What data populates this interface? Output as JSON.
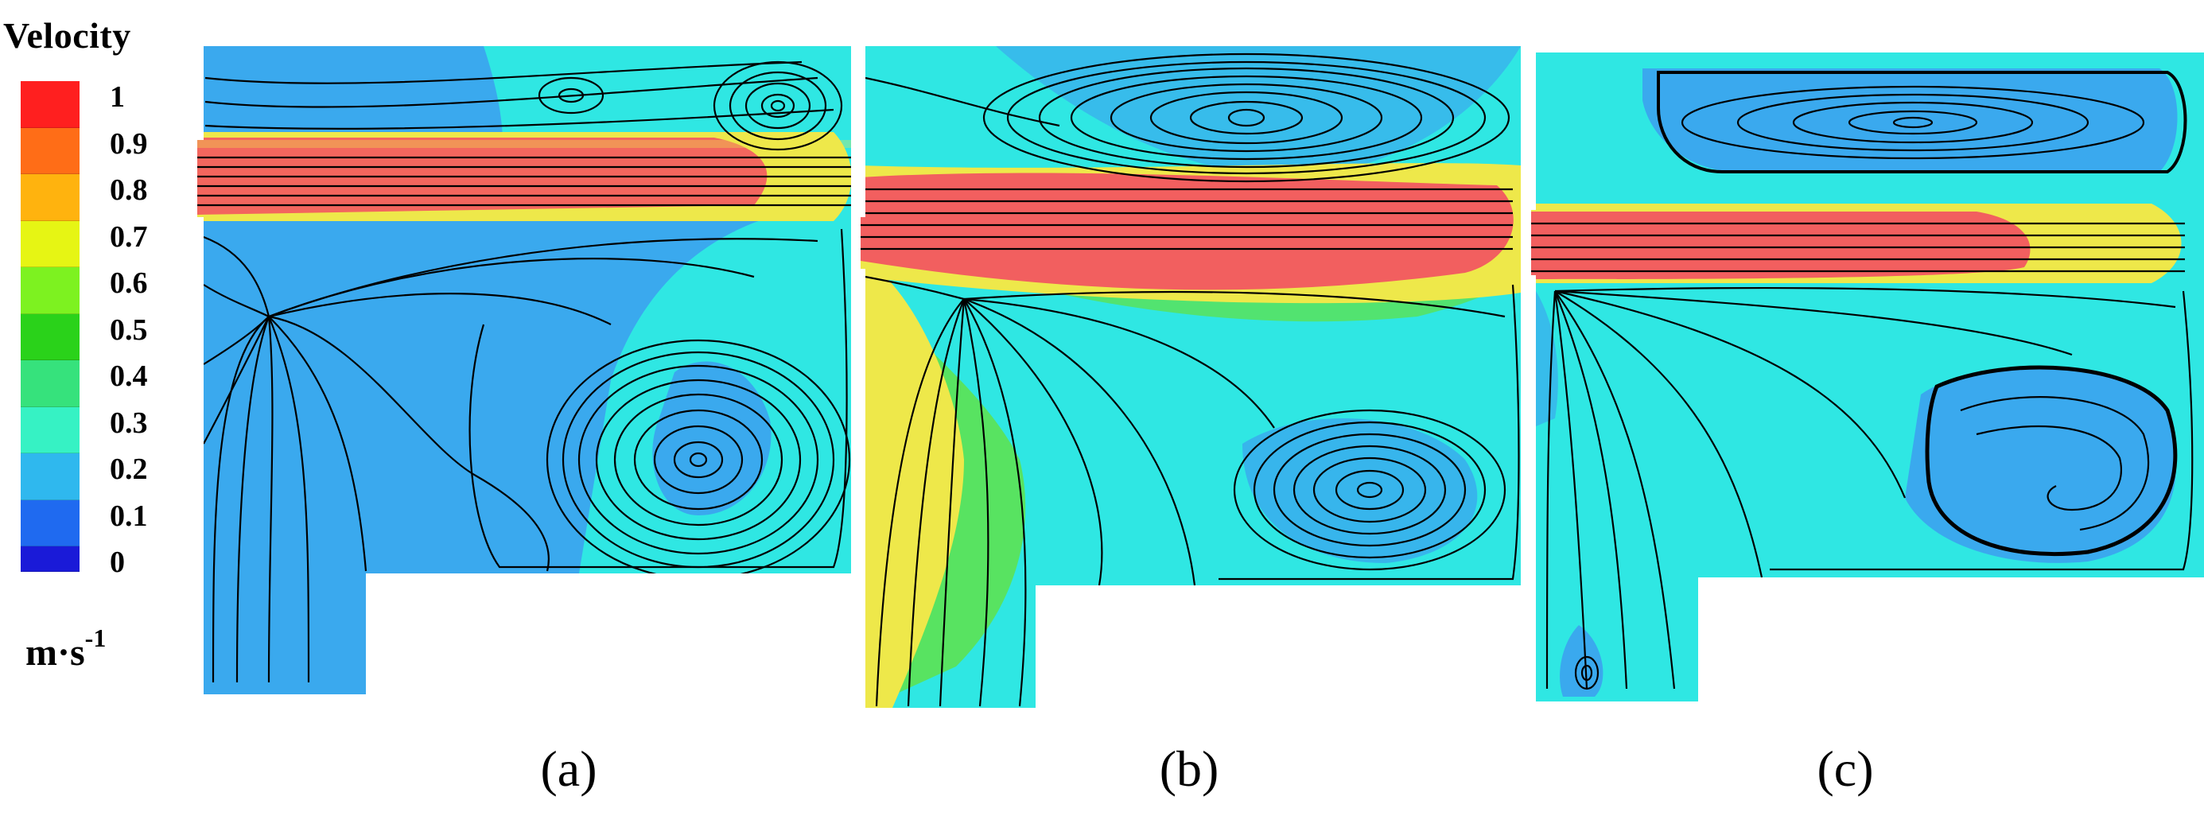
{
  "legend": {
    "title": "Velocity",
    "unit_base": "m·s",
    "unit_exp": "-1",
    "ticks": [
      "1",
      "0.9",
      "0.8",
      "0.7",
      "0.6",
      "0.5",
      "0.4",
      "0.3",
      "0.2",
      "0.1",
      "0"
    ],
    "colors": [
      "#ff1f1f",
      "#ff6d17",
      "#ffb30e",
      "#e6f514",
      "#7df220",
      "#2ad21a",
      "#36e27c",
      "#36f2c4",
      "#2fb8ee",
      "#1f6af0",
      "#1a1ad8"
    ]
  },
  "colors": {
    "jet": "#f25f5f",
    "jet_edge": "#eee84a",
    "field": "#2fe7e3",
    "low": "#3aa9ee",
    "medium": "#5fe24a",
    "streamline": "#000000"
  },
  "panels": [
    {
      "id": "a",
      "caption": "(a)"
    },
    {
      "id": "b",
      "caption": "(b)"
    },
    {
      "id": "c",
      "caption": "(c)"
    }
  ]
}
